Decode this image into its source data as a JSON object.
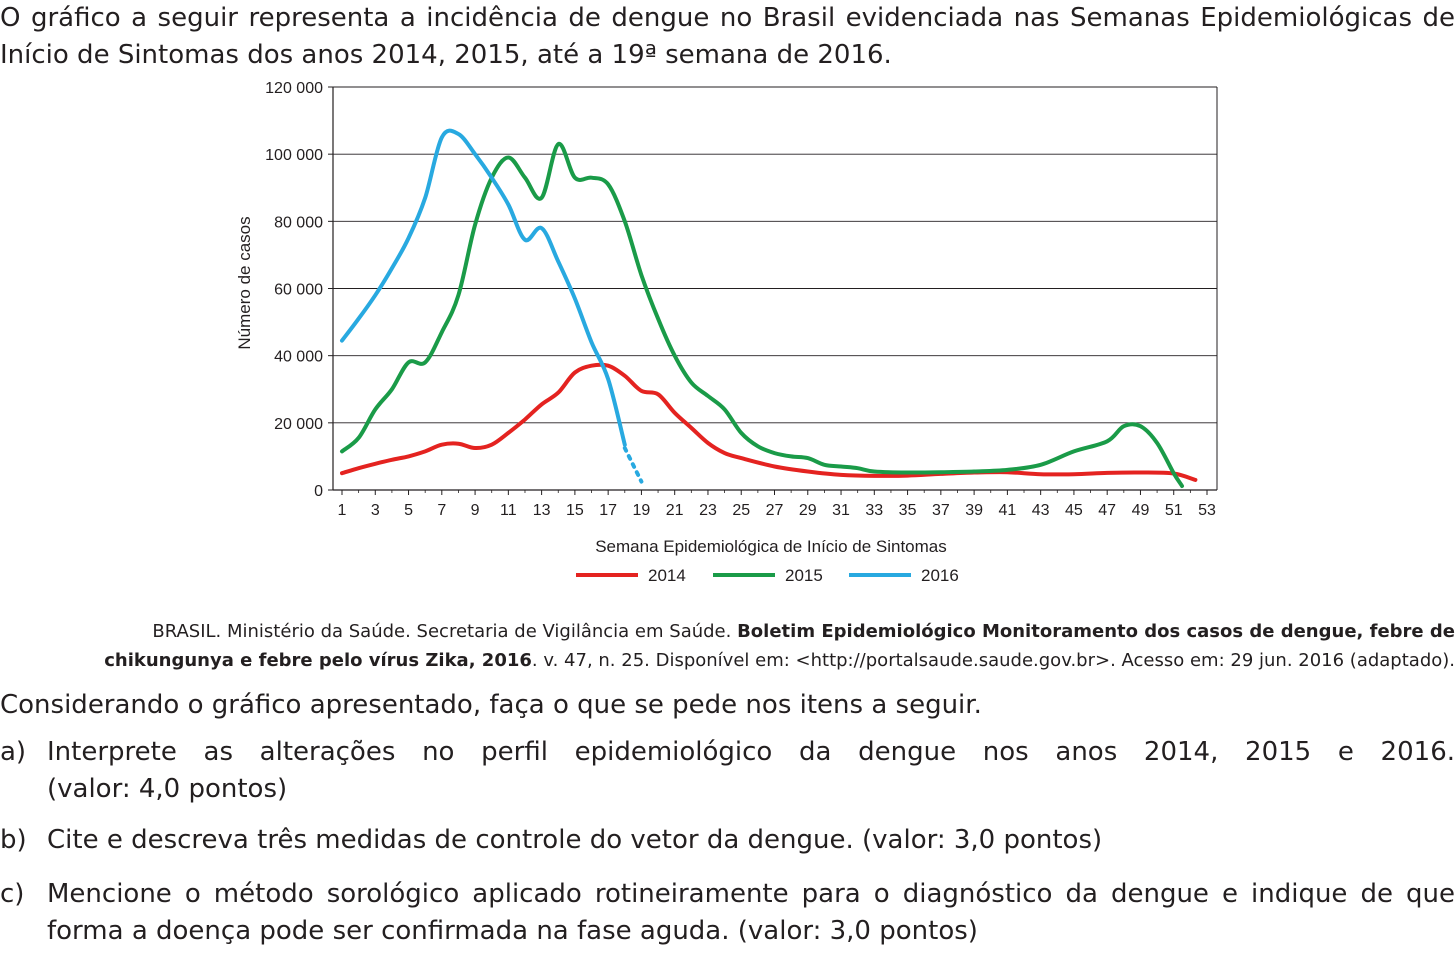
{
  "intro_text": "O gráfico a seguir representa a incidência de dengue no Brasil evidenciada nas Semanas Epidemiológicas de Início de Sintomas dos anos 2014, 2015, até a 19ª semana de 2016.",
  "chart_data": {
    "type": "line",
    "xlabel": "Semana Epidemiológica de Início de Sintomas",
    "ylabel": "Número de casos",
    "xlim": [
      1,
      53
    ],
    "ylim": [
      0,
      120000
    ],
    "x_ticks": [
      "1",
      "3",
      "5",
      "7",
      "9",
      "11",
      "13",
      "15",
      "17",
      "19",
      "21",
      "23",
      "25",
      "27",
      "29",
      "31",
      "33",
      "35",
      "37",
      "39",
      "41",
      "43",
      "45",
      "47",
      "49",
      "51",
      "53"
    ],
    "y_ticks": [
      "0",
      "20 000",
      "40 000",
      "60 000",
      "80 000",
      "100 000",
      "120 000"
    ],
    "y_tick_values": [
      0,
      20000,
      40000,
      60000,
      80000,
      100000,
      120000
    ],
    "grid": "horizontal",
    "legend_position": "bottom",
    "series": [
      {
        "name": "2014",
        "color": "#e42320",
        "x": [
          1,
          2,
          3,
          4,
          5,
          6,
          7,
          8,
          9,
          10,
          11,
          12,
          13,
          14,
          15,
          16,
          17,
          18,
          19,
          20,
          21,
          22,
          23,
          24,
          25,
          27,
          29,
          31,
          33,
          35,
          37,
          39,
          41,
          43,
          45,
          47,
          49,
          51,
          52.3
        ],
        "y": [
          5000,
          6500,
          7800,
          9000,
          10000,
          11500,
          13500,
          13800,
          12500,
          13500,
          17000,
          21000,
          25500,
          29000,
          35000,
          37000,
          37000,
          34000,
          29500,
          28500,
          23000,
          18500,
          14000,
          11000,
          9500,
          7000,
          5500,
          4500,
          4200,
          4300,
          4800,
          5200,
          5300,
          4700,
          4700,
          5100,
          5200,
          4900,
          3000
        ]
      },
      {
        "name": "2015",
        "color": "#1a9b48",
        "x": [
          1,
          2,
          3,
          4,
          5,
          6,
          7,
          8,
          9,
          10,
          11,
          12,
          13,
          14,
          15,
          16,
          17,
          18,
          19,
          20,
          21,
          22,
          23,
          24,
          25,
          26,
          27,
          28,
          29,
          30,
          31,
          32,
          33,
          35,
          37,
          39,
          41,
          43,
          45,
          47,
          48,
          49,
          50,
          51,
          51.5
        ],
        "y": [
          11500,
          15500,
          24000,
          30000,
          38000,
          38000,
          47000,
          58000,
          79000,
          93000,
          99000,
          93000,
          87000,
          103000,
          93000,
          93000,
          91000,
          80000,
          64000,
          51000,
          40000,
          32000,
          28000,
          24000,
          17000,
          13000,
          11000,
          10000,
          9500,
          7500,
          7000,
          6500,
          5500,
          5200,
          5300,
          5500,
          6000,
          7500,
          11500,
          14500,
          19000,
          19000,
          14000,
          5000,
          1200
        ]
      },
      {
        "name": "2016",
        "color": "#28a9e0",
        "x": [
          1,
          2,
          3,
          4,
          5,
          6,
          7,
          8,
          9,
          10,
          11,
          12,
          13,
          14,
          15,
          16,
          17,
          18
        ],
        "y": [
          44500,
          51000,
          58000,
          66000,
          75000,
          87000,
          105000,
          106000,
          100000,
          93000,
          85000,
          74500,
          78000,
          68000,
          57000,
          44000,
          33000,
          13500
        ]
      }
    ],
    "projection_2016": {
      "x": [
        18,
        19
      ],
      "y": [
        12500,
        2500
      ]
    }
  },
  "citation": {
    "line1_plain": "BRASIL. Ministério da Saúde. Secretaria de Vigilância em Saúde. ",
    "line1_bold": "Boletim Epidemiológico Monitoramento dos casos de dengue, febre de",
    "line2_bold": "chikungunya e febre pelo vírus Zika, 2016",
    "line2_plain": ".  v. 47, n. 25. Disponível em: <http://portalsaude.saude.gov.br>. Acesso em: 29 jun. 2016 (adaptado)."
  },
  "prompt_text": "Considerando o gráfico apresentado, faça o que se pede nos itens a seguir.",
  "items": [
    {
      "label": "a)",
      "line1": "Interprete as alterações no perfil epidemiológico da dengue nos anos 2014, 2015 e 2016.",
      "line2": "(valor: 4,0 pontos)"
    },
    {
      "label": "b)",
      "text": "Cite e descreva três medidas de controle do vetor da dengue. (valor: 3,0 pontos)"
    },
    {
      "label": "c)",
      "text": "Mencione o método sorológico aplicado rotineiramente para o diagnóstico da dengue e indique de que forma a doença pode ser confirmada na fase aguda. (valor: 3,0 pontos)"
    }
  ]
}
